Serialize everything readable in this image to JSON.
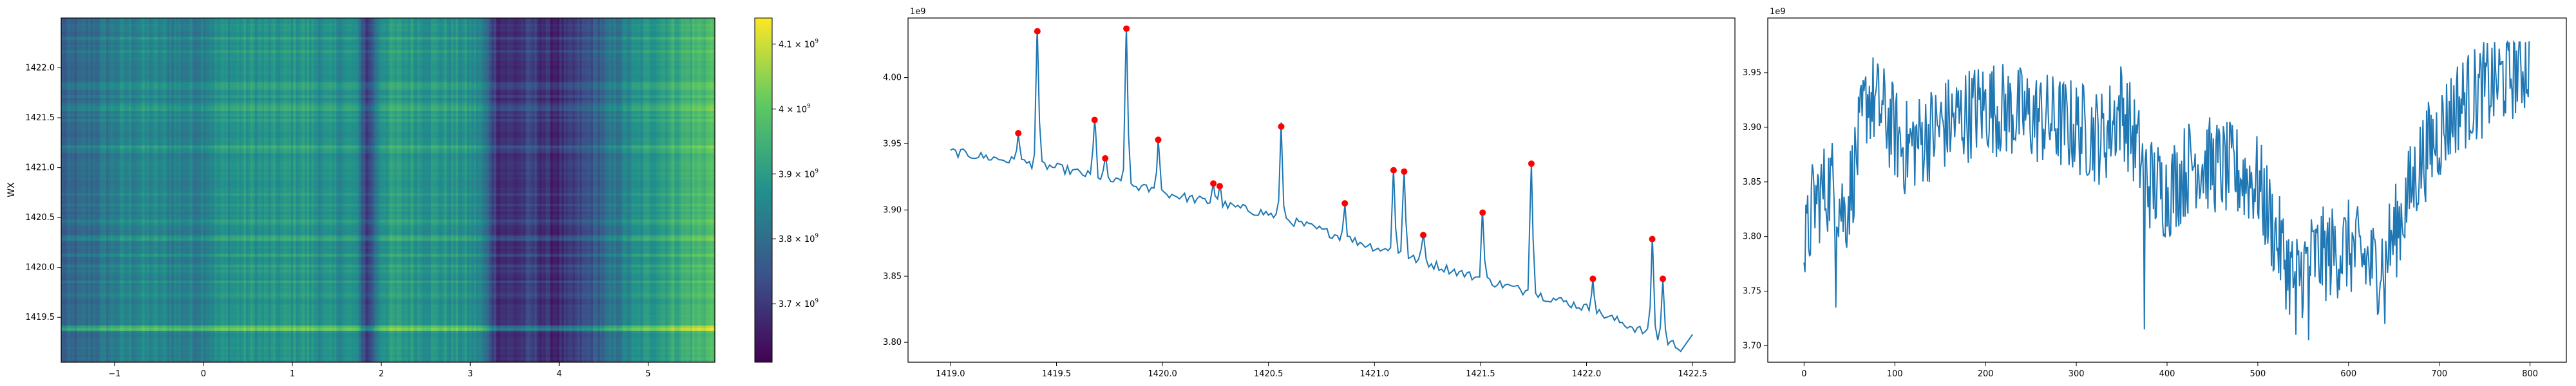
{
  "chart_data": [
    {
      "type": "heatmap",
      "title": "",
      "xlabel": "",
      "ylabel": "WX",
      "xlim": [
        -1.6,
        5.75
      ],
      "ylim": [
        1419.05,
        1422.5
      ],
      "x_ticks": [
        -1,
        0,
        1,
        2,
        3,
        4,
        5
      ],
      "x_tick_labels": [
        "−1",
        "0",
        "1",
        "2",
        "3",
        "4",
        "5"
      ],
      "y_ticks": [
        1419.5,
        1420.0,
        1420.5,
        1421.0,
        1421.5,
        1422.0
      ],
      "y_tick_labels": [
        "1419.5",
        "1420.0",
        "1420.5",
        "1421.0",
        "1421.5",
        "1422.0"
      ],
      "colormap": "viridis",
      "colorbar": {
        "vmin": 3610000000,
        "vmax": 4140000000,
        "ticks": [
          3700000000,
          3800000000,
          3900000000,
          4000000000,
          4100000000
        ],
        "tick_labels": [
          {
            "base": "3.7 × 10",
            "exp": "9"
          },
          {
            "base": "3.8 × 10",
            "exp": "9"
          },
          {
            "base": "3.9 × 10",
            "exp": "9"
          },
          {
            "base": "4 × 10",
            "exp": "9"
          },
          {
            "base": "4.1 × 10",
            "exp": "9"
          }
        ]
      },
      "column_profile": {
        "x": [
          -1.6,
          -1.3,
          -1.0,
          -0.7,
          -0.4,
          -0.1,
          0.2,
          0.5,
          0.8,
          1.1,
          1.4,
          1.7,
          1.85,
          2.0,
          2.3,
          2.6,
          2.9,
          3.1,
          3.3,
          3.5,
          3.7,
          3.9,
          4.1,
          4.3,
          4.5,
          4.8,
          5.1,
          5.4,
          5.75
        ],
        "values": [
          3760000000,
          3790000000,
          3830000000,
          3850000000,
          3840000000,
          3830000000,
          3870000000,
          3880000000,
          3870000000,
          3890000000,
          3860000000,
          3870000000,
          3690000000,
          3890000000,
          3890000000,
          3880000000,
          3870000000,
          3850000000,
          3690000000,
          3680000000,
          3710000000,
          3670000000,
          3680000000,
          3730000000,
          3780000000,
          3850000000,
          3900000000,
          3940000000,
          3980000000
        ]
      },
      "row_profile": {
        "y": [
          1419.4,
          1420.3,
          1421.2,
          1421.6,
          1422.3
        ],
        "offsets": [
          120000000,
          50000000,
          40000000,
          50000000,
          40000000
        ]
      }
    },
    {
      "type": "line",
      "title": "",
      "xlabel": "",
      "ylabel": "",
      "offset_label": "1e9",
      "xlim": [
        1418.8,
        1422.7
      ],
      "ylim": [
        3.785,
        4.045
      ],
      "x_ticks": [
        1419.0,
        1419.5,
        1420.0,
        1420.5,
        1421.0,
        1421.5,
        1422.0,
        1422.5
      ],
      "x_tick_labels": [
        "1419.0",
        "1419.5",
        "1420.0",
        "1420.5",
        "1421.0",
        "1421.5",
        "1422.0",
        "1422.5"
      ],
      "y_ticks": [
        3.8,
        3.85,
        3.9,
        3.95,
        4.0
      ],
      "y_tick_labels": [
        "3.80",
        "3.85",
        "3.90",
        "3.95",
        "4.00"
      ],
      "baseline": {
        "x": [
          1419.0,
          1419.5,
          1420.0,
          1420.5,
          1421.0,
          1421.5,
          1422.0,
          1422.45
        ],
        "y": [
          3.944,
          3.932,
          3.913,
          3.897,
          3.872,
          3.848,
          3.826,
          3.796
        ]
      },
      "end_point": [
        1422.5,
        3.806
      ],
      "peaks": {
        "x": [
          1419.32,
          1419.41,
          1419.68,
          1419.73,
          1419.83,
          1419.98,
          1420.24,
          1420.27,
          1420.56,
          1420.86,
          1421.09,
          1421.14,
          1421.23,
          1421.51,
          1421.74,
          1422.03,
          1422.31,
          1422.36
        ],
        "y": [
          3.958,
          4.035,
          3.968,
          3.939,
          4.037,
          3.953,
          3.92,
          3.918,
          3.963,
          3.905,
          3.93,
          3.929,
          3.881,
          3.898,
          3.935,
          3.848,
          3.878,
          3.848
        ]
      }
    },
    {
      "type": "line",
      "title": "",
      "xlabel": "",
      "ylabel": "",
      "offset_label": "1e9",
      "xlim": [
        -40,
        840
      ],
      "ylim": [
        3.685,
        4.0
      ],
      "x_ticks": [
        0,
        100,
        200,
        300,
        400,
        500,
        600,
        700,
        800
      ],
      "x_tick_labels": [
        "0",
        "100",
        "200",
        "300",
        "400",
        "500",
        "600",
        "700",
        "800"
      ],
      "y_ticks": [
        3.7,
        3.75,
        3.8,
        3.85,
        3.9,
        3.95
      ],
      "y_tick_labels": [
        "3.70",
        "3.75",
        "3.80",
        "3.85",
        "3.90",
        "3.95"
      ],
      "series_trend": {
        "x": [
          0,
          10,
          30,
          45,
          55,
          70,
          90,
          110,
          150,
          200,
          250,
          300,
          330,
          350,
          380,
          400,
          430,
          470,
          500,
          520,
          540,
          560,
          600,
          630,
          650,
          680,
          720,
          760,
          800
        ],
        "y": [
          3.78,
          3.83,
          3.85,
          3.82,
          3.86,
          3.93,
          3.91,
          3.88,
          3.9,
          3.92,
          3.91,
          3.9,
          3.89,
          3.92,
          3.85,
          3.84,
          3.87,
          3.86,
          3.85,
          3.8,
          3.76,
          3.78,
          3.79,
          3.77,
          3.8,
          3.87,
          3.92,
          3.94,
          3.96
        ]
      },
      "dips": {
        "x": [
          35,
          375,
          542,
          556,
          640
        ],
        "y": [
          3.735,
          3.715,
          3.71,
          3.705,
          3.72
        ]
      }
    }
  ]
}
